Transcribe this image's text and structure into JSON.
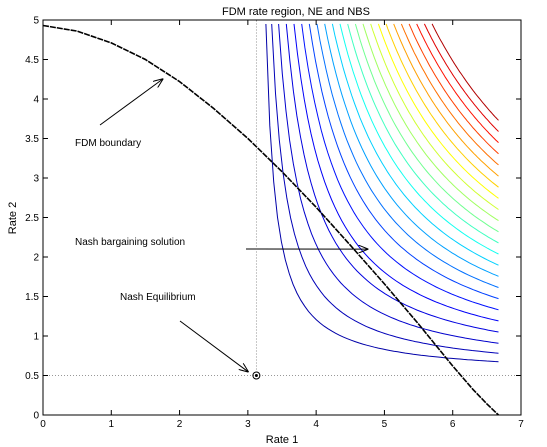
{
  "chart_data": {
    "type": "line",
    "title": "FDM rate region, NE and NBS",
    "xlabel": "Rate 1",
    "ylabel": "Rate 2",
    "xlim": [
      0,
      7
    ],
    "ylim": [
      0,
      5
    ],
    "xticks": [
      0,
      1,
      2,
      3,
      4,
      5,
      6,
      7
    ],
    "yticks": [
      0,
      0.5,
      1,
      1.5,
      2,
      2.5,
      3,
      3.5,
      4,
      4.5,
      5
    ],
    "xtick_labels": [
      "0",
      "1",
      "2",
      "3",
      "4",
      "5",
      "6",
      "7"
    ],
    "ytick_labels": [
      "0",
      "0.5",
      "1",
      "1.5",
      "2",
      "2.5",
      "3",
      "3.5",
      "4",
      "4.5",
      "5"
    ],
    "grid": false,
    "boundary": {
      "color": "#000000",
      "x": [
        0,
        0.5,
        1,
        1.5,
        2,
        2.5,
        3,
        3.5,
        4,
        4.5,
        5,
        5.5,
        6,
        6.3,
        6.5,
        6.62,
        6.67
      ],
      "y": [
        4.93,
        4.86,
        4.71,
        4.5,
        4.22,
        3.88,
        3.5,
        3.08,
        2.63,
        2.15,
        1.66,
        1.15,
        0.62,
        0.32,
        0.14,
        0.04,
        0
      ]
    },
    "contours": {
      "x0": 3.125,
      "y0": 0.5,
      "x_max": 6.67,
      "y_max": 4.95,
      "levels": [
        0.62,
        1.0,
        1.45,
        1.95,
        2.45,
        2.95,
        3.45,
        3.95,
        4.45,
        4.95,
        5.45,
        5.95,
        6.45,
        6.95,
        7.45,
        7.95,
        8.45,
        8.95,
        9.45,
        9.95,
        10.45,
        10.95,
        11.45
      ],
      "colors": [
        "#0000a8",
        "#0000b8",
        "#0000cc",
        "#0000e0",
        "#0000f8",
        "#0010ff",
        "#0040ff",
        "#0070ff",
        "#00a0ff",
        "#00d0ff",
        "#10fff0",
        "#40ffc0",
        "#70ff90",
        "#a0ff60",
        "#d0ff30",
        "#ffff00",
        "#ffd000",
        "#ffa000",
        "#ff7000",
        "#ff4000",
        "#ff1000",
        "#e00000",
        "#b00000"
      ]
    },
    "nash_equilibrium": {
      "x": 3.125,
      "y": 0.5
    },
    "nbs_point": {
      "x": 4.95,
      "y": 2.08
    },
    "annotations": [
      {
        "text": "FDM boundary",
        "target": [
          1.75,
          4.25
        ]
      },
      {
        "text": "Nash bargaining solution",
        "target": [
          4.75,
          2.1
        ]
      },
      {
        "text": "Nash Equilibrium",
        "target": [
          3.0,
          0.55
        ]
      }
    ]
  }
}
